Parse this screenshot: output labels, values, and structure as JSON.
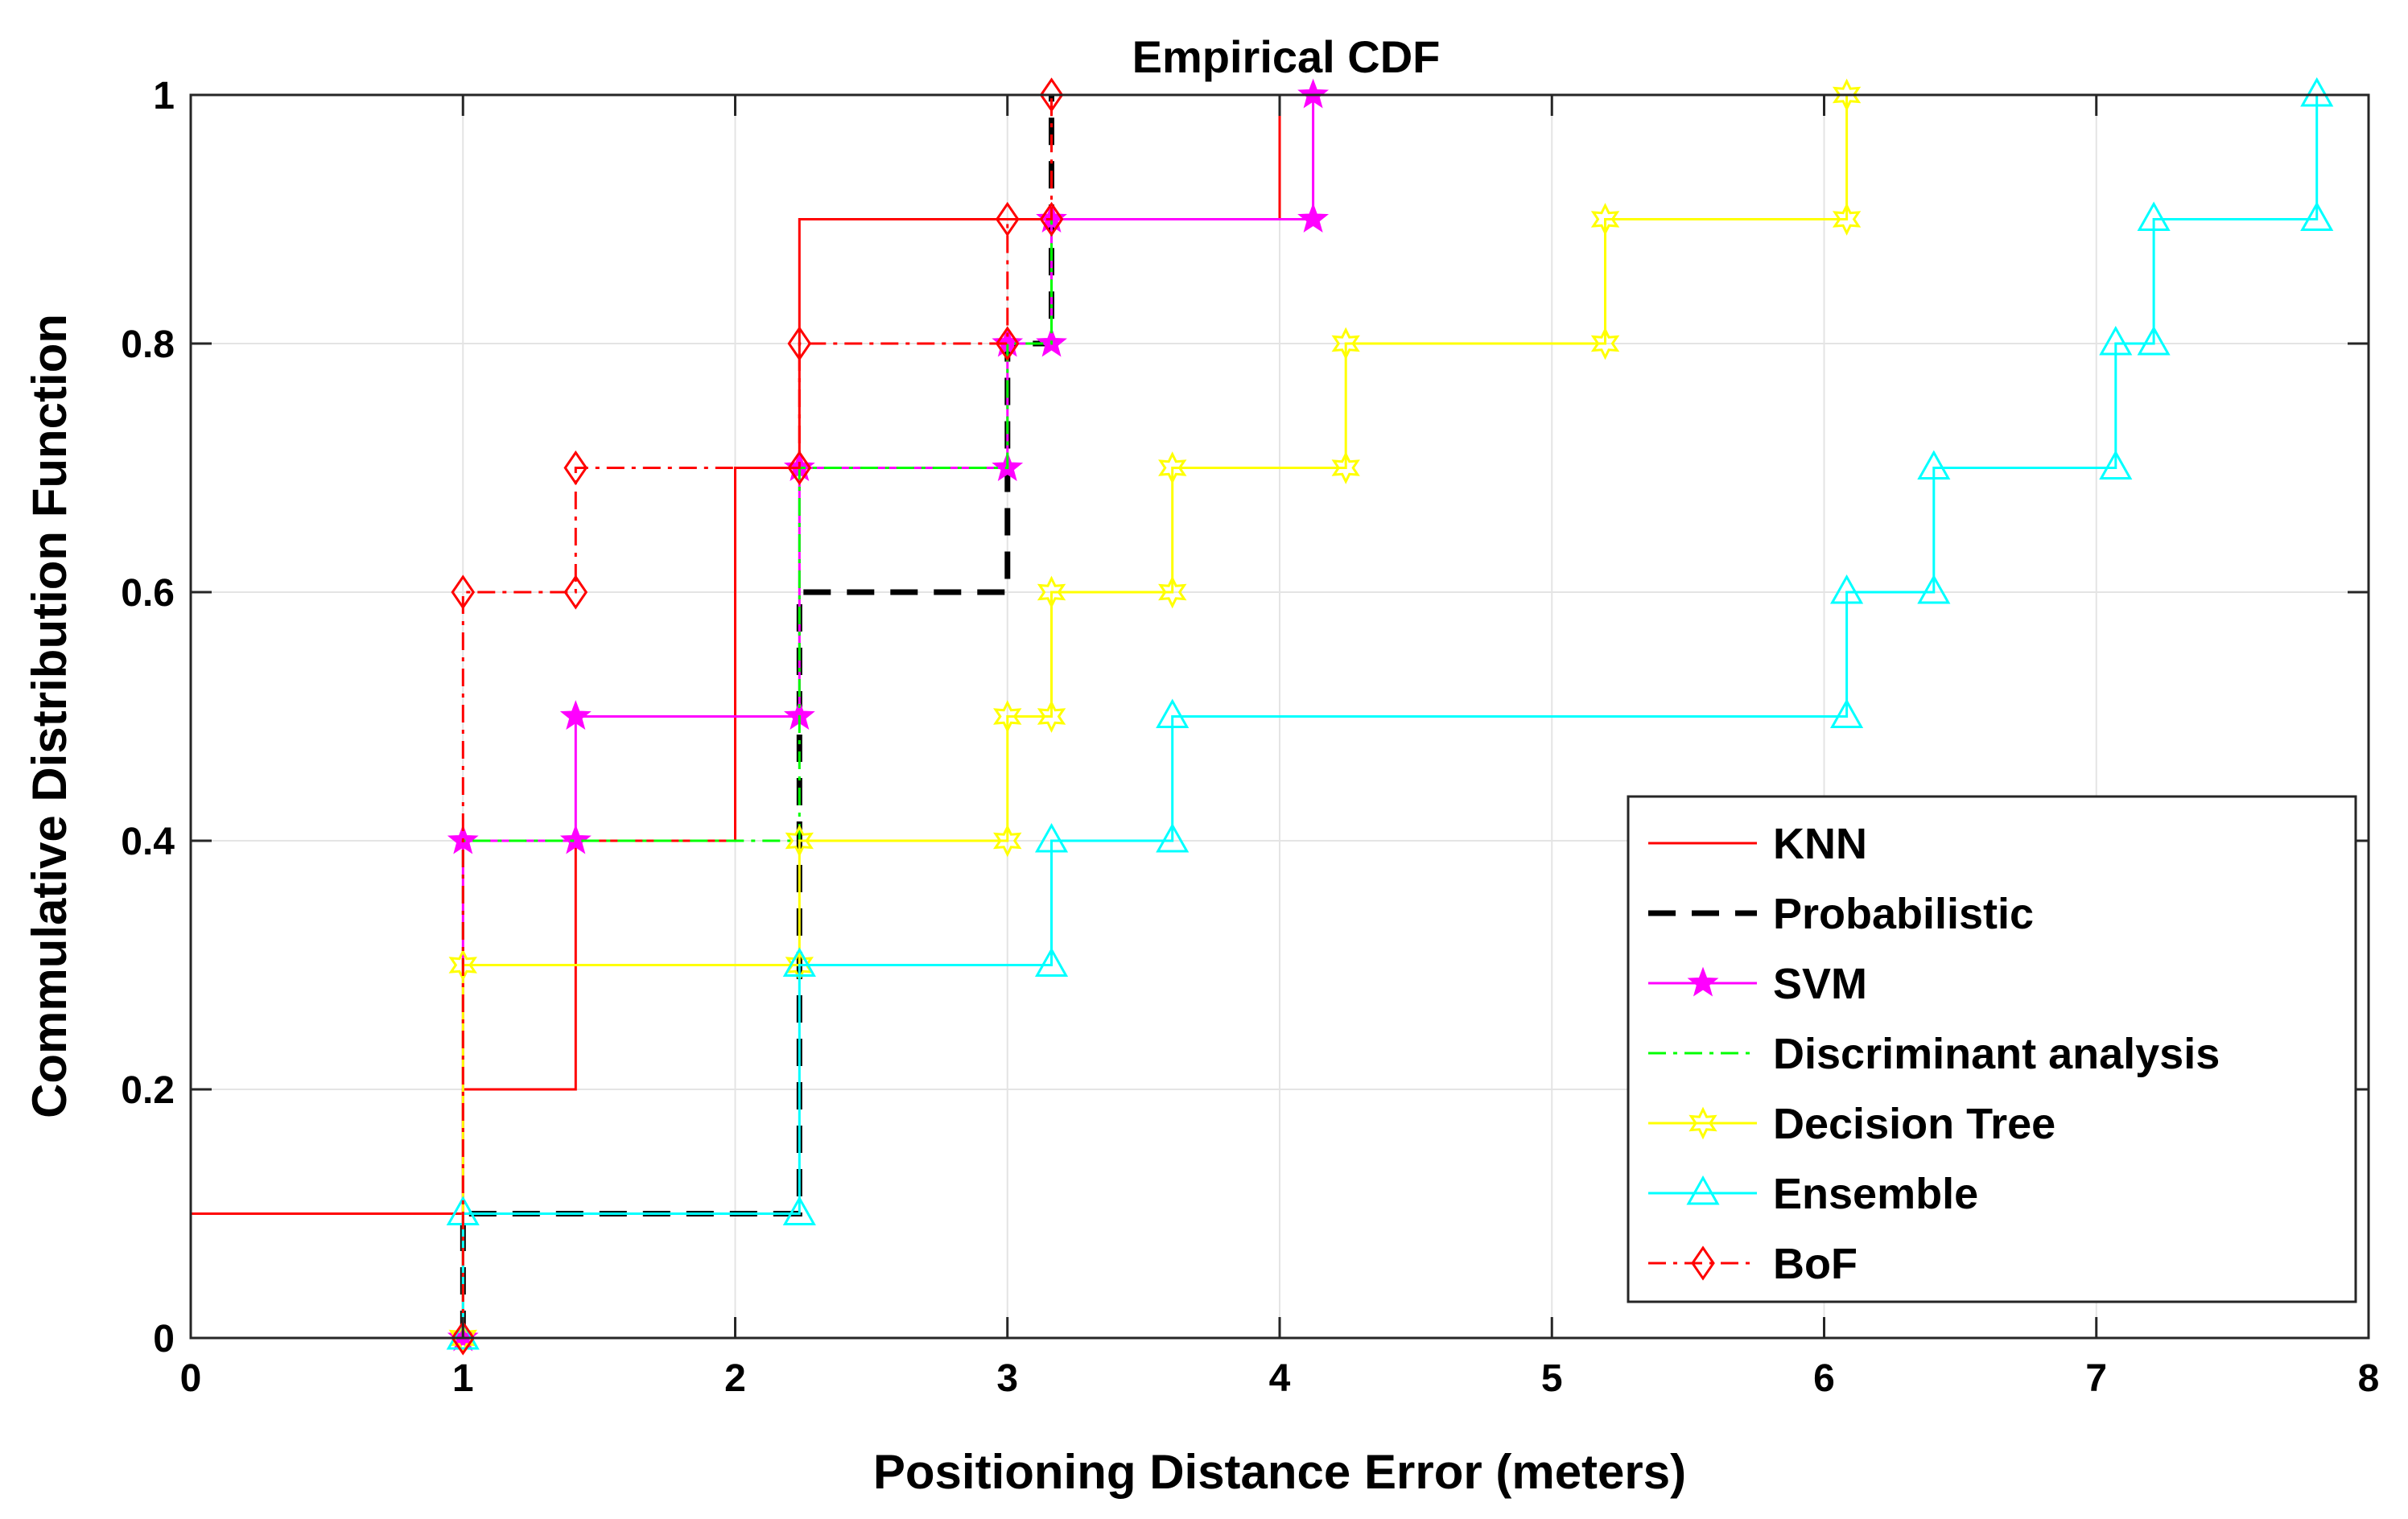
{
  "chart_data": {
    "type": "line",
    "title": "Empirical CDF",
    "xlabel": "Positioning Distance Error (meters)",
    "ylabel": "Commulative Distribution Function",
    "xlim": [
      0,
      8
    ],
    "ylim": [
      0,
      1
    ],
    "xticks": [
      "0",
      "1",
      "2",
      "3",
      "4",
      "5",
      "6",
      "7",
      "8"
    ],
    "yticks": [
      "0",
      "0.2",
      "0.4",
      "0.6",
      "0.8",
      "1"
    ],
    "grid": true,
    "legend_position": "bottom-right",
    "series": [
      {
        "name": "KNN",
        "color": "#ff0000",
        "line_style": "solid",
        "marker": "none",
        "points": [
          [
            0,
            0
          ],
          [
            0,
            0.1
          ],
          [
            1,
            0.1
          ],
          [
            1,
            0.2
          ],
          [
            1.414,
            0.2
          ],
          [
            1.414,
            0.4
          ],
          [
            2,
            0.4
          ],
          [
            2,
            0.5
          ],
          [
            2,
            0.7
          ],
          [
            2.236,
            0.7
          ],
          [
            2.236,
            0.9
          ],
          [
            3,
            0.9
          ],
          [
            4,
            0.9
          ],
          [
            4,
            1
          ]
        ]
      },
      {
        "name": "Probabilistic",
        "color": "#000000",
        "line_style": "dashed",
        "marker": "none",
        "points": [
          [
            1,
            0
          ],
          [
            1,
            0.1
          ],
          [
            2.236,
            0.1
          ],
          [
            2.236,
            0.6
          ],
          [
            3,
            0.6
          ],
          [
            3,
            0.8
          ],
          [
            3.162,
            0.8
          ],
          [
            3.162,
            1
          ]
        ]
      },
      {
        "name": "SVM",
        "color": "#ff00ff",
        "line_style": "solid",
        "marker": "star",
        "points": [
          [
            1,
            0
          ],
          [
            1,
            0.4
          ],
          [
            1.414,
            0.4
          ],
          [
            1.414,
            0.5
          ],
          [
            2.236,
            0.5
          ],
          [
            2.236,
            0.7
          ],
          [
            3,
            0.7
          ],
          [
            3,
            0.8
          ],
          [
            3.162,
            0.8
          ],
          [
            3.162,
            0.9
          ],
          [
            4.123,
            0.9
          ],
          [
            4.123,
            1
          ]
        ]
      },
      {
        "name": "Discriminant analysis",
        "color": "#00ff00",
        "line_style": "dashdot",
        "marker": "none",
        "points": [
          [
            1,
            0
          ],
          [
            1,
            0.4
          ],
          [
            1.414,
            0.4
          ],
          [
            2.236,
            0.4
          ],
          [
            2.236,
            0.7
          ],
          [
            3,
            0.7
          ],
          [
            3,
            0.8
          ],
          [
            3.162,
            0.8
          ],
          [
            3.162,
            0.9
          ]
        ]
      },
      {
        "name": "Decision Tree",
        "color": "#ffff00",
        "line_style": "solid",
        "marker": "hexagram",
        "points": [
          [
            1,
            0
          ],
          [
            1,
            0.3
          ],
          [
            2.236,
            0.3
          ],
          [
            2.236,
            0.4
          ],
          [
            3,
            0.4
          ],
          [
            3,
            0.5
          ],
          [
            3.162,
            0.5
          ],
          [
            3.162,
            0.6
          ],
          [
            3.606,
            0.6
          ],
          [
            3.606,
            0.7
          ],
          [
            4.243,
            0.7
          ],
          [
            4.243,
            0.8
          ],
          [
            5.196,
            0.8
          ],
          [
            5.196,
            0.9
          ],
          [
            6.083,
            0.9
          ],
          [
            6.083,
            1
          ]
        ]
      },
      {
        "name": "Ensemble",
        "color": "#00ffff",
        "line_style": "solid",
        "marker": "triangle",
        "points": [
          [
            1,
            0
          ],
          [
            1,
            0.1
          ],
          [
            2.236,
            0.1
          ],
          [
            2.236,
            0.3
          ],
          [
            3.162,
            0.3
          ],
          [
            3.162,
            0.4
          ],
          [
            3.606,
            0.4
          ],
          [
            3.606,
            0.5
          ],
          [
            6.083,
            0.5
          ],
          [
            6.083,
            0.6
          ],
          [
            6.403,
            0.6
          ],
          [
            6.403,
            0.7
          ],
          [
            7.071,
            0.7
          ],
          [
            7.071,
            0.8
          ],
          [
            7.211,
            0.8
          ],
          [
            7.211,
            0.9
          ],
          [
            7.81,
            0.9
          ],
          [
            7.81,
            1
          ]
        ]
      },
      {
        "name": "BoF",
        "color": "#ff0000",
        "line_style": "dashdot",
        "marker": "diamond",
        "points": [
          [
            1,
            0
          ],
          [
            1,
            0.6
          ],
          [
            1.414,
            0.6
          ],
          [
            1.414,
            0.7
          ],
          [
            2.236,
            0.7
          ],
          [
            2.236,
            0.8
          ],
          [
            3,
            0.8
          ],
          [
            3,
            0.9
          ],
          [
            3.162,
            0.9
          ],
          [
            3.162,
            1
          ]
        ]
      }
    ]
  }
}
